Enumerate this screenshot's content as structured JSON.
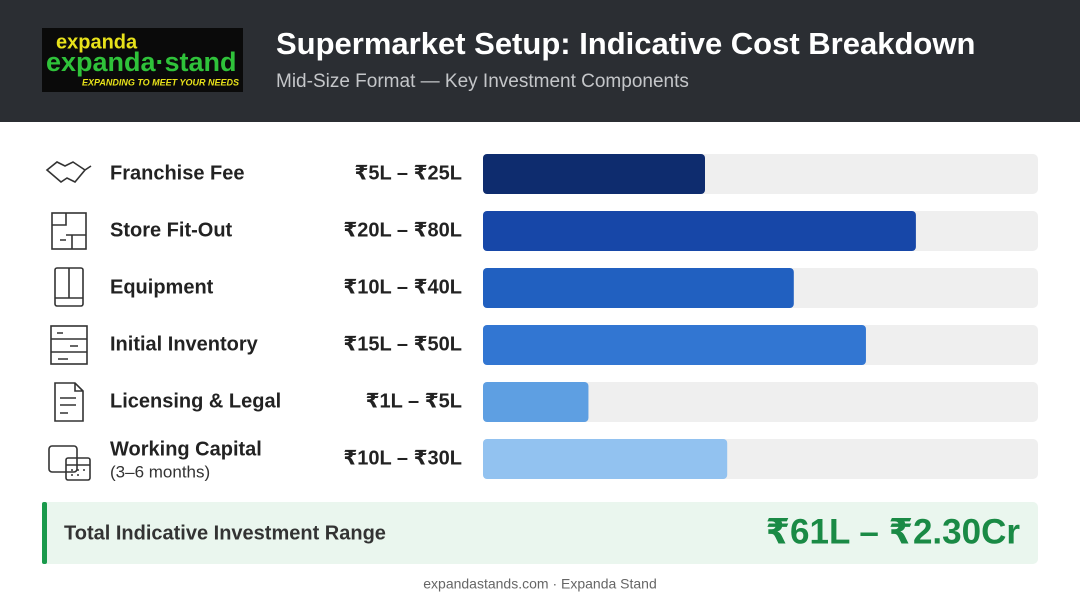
{
  "logo": {
    "top": "expanda",
    "main": "expanda·stand",
    "tagline": "EXPANDING TO MEET YOUR NEEDS"
  },
  "chart_data": {
    "type": "hbar",
    "title": "Supermarket Setup: Indicative Cost Breakdown",
    "subtitle": "Mid-Size Format — Key Investment Components",
    "categories": [
      "Franchise Fee",
      "Store Fit-Out",
      "Equipment",
      "Initial Inventory",
      "Licensing & Legal",
      "Working Capital"
    ],
    "category_notes": [
      null,
      null,
      null,
      null,
      null,
      "(3–6 months)"
    ],
    "ranges": [
      "₹5L – ₹25L",
      "₹20L – ₹80L",
      "₹10L – ₹40L",
      "₹15L – ₹50L",
      "₹1L – ₹5L",
      "₹10L – ₹30L"
    ],
    "values": [
      40,
      78,
      56,
      69,
      19,
      44
    ],
    "colors": [
      "#0e2c6e",
      "#1747a8",
      "#2160c0",
      "#3276d2",
      "#5e9fe2",
      "#92c2f0"
    ],
    "track_color": "#efefef",
    "xlim": [
      0,
      100
    ]
  },
  "total": {
    "label": "Total Indicative Investment Range",
    "value": "₹61L – ₹2.30Cr"
  },
  "footer": "expandastands.com · Expanda Stand"
}
